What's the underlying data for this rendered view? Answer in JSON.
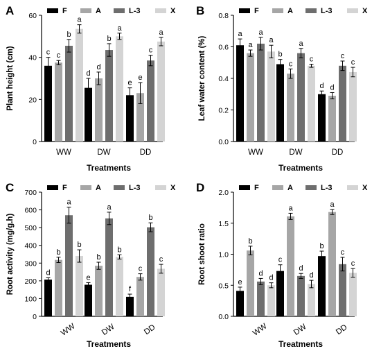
{
  "legend": [
    "F",
    "A",
    "L-3",
    "X"
  ],
  "colors": {
    "F": "#000000",
    "A": "#a6a6a6",
    "L-3": "#6e6e6e",
    "X": "#d4d4d4"
  },
  "chart_data": [
    {
      "panel": "A",
      "type": "bar",
      "xlabel": "Treatments",
      "ylabel": "Plant height (cm)",
      "categories": [
        "WW",
        "DW",
        "DD"
      ],
      "ylim": [
        0,
        60
      ],
      "yticks": [
        "0",
        "20",
        "40",
        "60"
      ],
      "legend_position": "top",
      "series": [
        {
          "name": "F",
          "values": [
            36,
            25.5,
            22
          ],
          "errors": [
            4,
            4.5,
            3.5
          ],
          "letters": [
            "c",
            "d",
            "e"
          ]
        },
        {
          "name": "A",
          "values": [
            37.5,
            30,
            23
          ],
          "errors": [
            1,
            3,
            5
          ],
          "letters": [
            "c",
            "d",
            "e"
          ]
        },
        {
          "name": "L-3",
          "values": [
            45.5,
            43.5,
            38.5
          ],
          "errors": [
            3,
            3,
            2.5
          ],
          "letters": [
            "b",
            "b",
            "c"
          ]
        },
        {
          "name": "X",
          "values": [
            53.5,
            50,
            47.5
          ],
          "errors": [
            2,
            1.5,
            2
          ],
          "letters": [
            "a",
            "a",
            "a"
          ]
        }
      ]
    },
    {
      "panel": "B",
      "type": "bar",
      "xlabel": "Treatments",
      "ylabel": "Leaf water content (%)",
      "categories": [
        "WW",
        "DW",
        "DD"
      ],
      "ylim": [
        0,
        0.8
      ],
      "yticks": [
        "0.0",
        "0.2",
        "0.4",
        "0.6",
        "0.8"
      ],
      "legend_position": "top",
      "series": [
        {
          "name": "F",
          "values": [
            0.61,
            0.49,
            0.3
          ],
          "errors": [
            0.04,
            0.03,
            0.02
          ],
          "letters": [
            "a",
            "b",
            "d"
          ]
        },
        {
          "name": "A",
          "values": [
            0.56,
            0.43,
            0.29
          ],
          "errors": [
            0.02,
            0.03,
            0.02
          ],
          "letters": [
            "a",
            "c",
            "d"
          ]
        },
        {
          "name": "L-3",
          "values": [
            0.62,
            0.56,
            0.48
          ],
          "errors": [
            0.04,
            0.03,
            0.03
          ],
          "letters": [
            "a",
            "a",
            "c"
          ]
        },
        {
          "name": "X",
          "values": [
            0.57,
            0.48,
            0.44
          ],
          "errors": [
            0.04,
            0.01,
            0.03
          ],
          "letters": [
            "a",
            "c",
            "c"
          ]
        }
      ]
    },
    {
      "panel": "C",
      "type": "bar",
      "xlabel": "Treatments",
      "ylabel": "Root activity (mg/g.h)",
      "categories": [
        "WW",
        "DW",
        "DD"
      ],
      "ylim": [
        0,
        700
      ],
      "yticks": [
        "0",
        "100",
        "200",
        "300",
        "400",
        "500",
        "600",
        "700"
      ],
      "legend_position": "top",
      "series": [
        {
          "name": "F",
          "values": [
            207,
            178,
            110
          ],
          "errors": [
            10,
            12,
            15
          ],
          "letters": [
            "d",
            "e",
            "f"
          ]
        },
        {
          "name": "A",
          "values": [
            318,
            285,
            222
          ],
          "errors": [
            15,
            20,
            18
          ],
          "letters": [
            "b",
            "b",
            "c"
          ]
        },
        {
          "name": "L-3",
          "values": [
            570,
            552,
            502
          ],
          "errors": [
            45,
            35,
            25
          ],
          "letters": [
            "a",
            "a",
            "b"
          ]
        },
        {
          "name": "X",
          "values": [
            340,
            335,
            268
          ],
          "errors": [
            35,
            12,
            25
          ],
          "letters": [
            "b",
            "b",
            "c"
          ]
        }
      ]
    },
    {
      "panel": "D",
      "type": "bar",
      "xlabel": "Treatments",
      "ylabel": "Root shoot ratio",
      "categories": [
        "WW",
        "DW",
        "DD"
      ],
      "ylim": [
        0,
        2.0
      ],
      "yticks": [
        "0.0",
        "0.5",
        "1.0",
        "1.5",
        "2.0"
      ],
      "legend_position": "top",
      "series": [
        {
          "name": "F",
          "values": [
            0.41,
            0.73,
            0.97
          ],
          "errors": [
            0.06,
            0.1,
            0.08
          ],
          "letters": [
            "e",
            "c",
            "b"
          ]
        },
        {
          "name": "A",
          "values": [
            1.06,
            1.61,
            1.68
          ],
          "errors": [
            0.07,
            0.05,
            0.04
          ],
          "letters": [
            "b",
            "a",
            "a"
          ]
        },
        {
          "name": "L-3",
          "values": [
            0.56,
            0.65,
            0.84
          ],
          "errors": [
            0.05,
            0.04,
            0.11
          ],
          "letters": [
            "d",
            "d",
            "c"
          ]
        },
        {
          "name": "X",
          "values": [
            0.5,
            0.52,
            0.7
          ],
          "errors": [
            0.04,
            0.06,
            0.07
          ],
          "letters": [
            "d",
            "d",
            "c"
          ]
        }
      ]
    }
  ]
}
